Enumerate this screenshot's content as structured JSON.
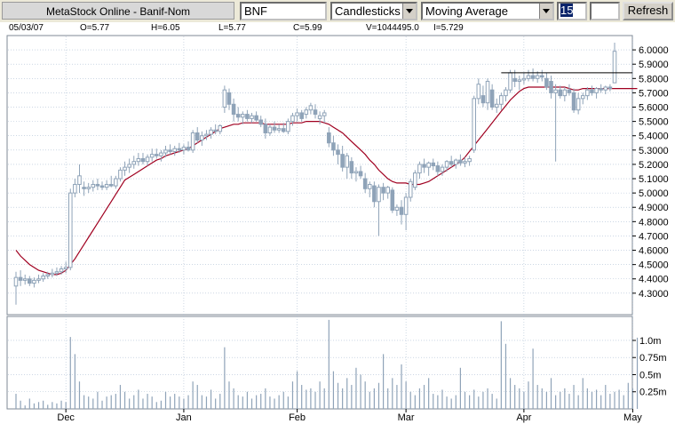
{
  "toolbar": {
    "title": "MetaStock Online - Banif-Nom",
    "symbol": "BNF",
    "chart_type": "Candlesticks",
    "indicator": "Moving Average",
    "period": "15",
    "refresh_label": "Refresh"
  },
  "info": {
    "date": "05/03/07",
    "open": "O=5.77",
    "high": "H=6.05",
    "low": "L=5.77",
    "close": "C=5.99",
    "volume": "V=1044495.0",
    "indicator_value": "I=5.729"
  },
  "colors": {
    "candle": "#8fa3b8",
    "moving_average": "#a00020",
    "grid": "#aebfd3",
    "toolbar": "#ece9d8"
  },
  "chart_data": {
    "type": "candlestick",
    "price_axis": {
      "min": 4.15,
      "max": 6.1,
      "ticks": [
        4.3,
        4.4,
        4.5,
        4.6,
        4.7,
        4.8,
        4.9,
        5.0,
        5.1,
        5.2,
        5.3,
        5.4,
        5.5,
        5.6,
        5.7,
        5.8,
        5.9,
        6.0
      ],
      "tick_labels": [
        "4.3000",
        "4.4000",
        "4.5000",
        "4.6000",
        "4.7000",
        "4.8000",
        "4.9000",
        "5.0000",
        "5.1000",
        "5.2000",
        "5.3000",
        "5.4000",
        "5.5000",
        "5.6000",
        "5.7000",
        "5.8000",
        "5.9000",
        "6.0000"
      ]
    },
    "volume_axis": {
      "max": 1.35,
      "ticks": [
        0.25,
        0.5,
        0.75,
        1.0
      ],
      "tick_labels": [
        "0.25m",
        "0.5m",
        "0.75m",
        "1.0m"
      ]
    },
    "x_labels": [
      {
        "index": 11,
        "label": "Dec"
      },
      {
        "index": 37,
        "label": "Jan"
      },
      {
        "index": 62,
        "label": "Feb"
      },
      {
        "index": 86,
        "label": "Mar"
      },
      {
        "index": 112,
        "label": "Apr"
      },
      {
        "index": 136,
        "label": "May"
      }
    ],
    "horizontal_line": {
      "value": 5.84,
      "from_index": 107,
      "to_index": 139
    },
    "candles": [
      [
        4.35,
        4.45,
        4.22,
        4.41
      ],
      [
        4.41,
        4.46,
        4.35,
        4.39
      ],
      [
        4.39,
        4.43,
        4.36,
        4.4
      ],
      [
        4.4,
        4.42,
        4.35,
        4.37
      ],
      [
        4.37,
        4.41,
        4.34,
        4.39
      ],
      [
        4.39,
        4.43,
        4.37,
        4.4
      ],
      [
        4.4,
        4.44,
        4.38,
        4.42
      ],
      [
        4.42,
        4.45,
        4.4,
        4.43
      ],
      [
        4.43,
        4.47,
        4.41,
        4.44
      ],
      [
        4.44,
        4.48,
        4.42,
        4.45
      ],
      [
        4.45,
        4.49,
        4.43,
        4.47
      ],
      [
        4.47,
        4.52,
        4.44,
        4.48
      ],
      [
        4.48,
        5.03,
        4.46,
        5.0
      ],
      [
        5.0,
        5.1,
        4.97,
        5.06
      ],
      [
        5.06,
        5.2,
        5.0,
        5.12
      ],
      [
        5.04,
        5.08,
        4.98,
        5.03
      ],
      [
        5.03,
        5.07,
        5.0,
        5.04
      ],
      [
        5.04,
        5.09,
        5.01,
        5.06
      ],
      [
        5.06,
        5.1,
        5.02,
        5.05
      ],
      [
        5.05,
        5.08,
        5.02,
        5.04
      ],
      [
        5.04,
        5.09,
        5.02,
        5.06
      ],
      [
        5.06,
        5.12,
        5.04,
        5.05
      ],
      [
        5.05,
        5.12,
        5.03,
        5.1
      ],
      [
        5.1,
        5.18,
        5.08,
        5.16
      ],
      [
        5.16,
        5.22,
        5.12,
        5.18
      ],
      [
        5.18,
        5.24,
        5.14,
        5.2
      ],
      [
        5.2,
        5.26,
        5.17,
        5.22
      ],
      [
        5.22,
        5.28,
        5.19,
        5.24
      ],
      [
        5.24,
        5.28,
        5.2,
        5.22
      ],
      [
        5.22,
        5.27,
        5.19,
        5.25
      ],
      [
        5.25,
        5.31,
        5.22,
        5.27
      ],
      [
        5.27,
        5.31,
        5.24,
        5.26
      ],
      [
        5.26,
        5.3,
        5.22,
        5.28
      ],
      [
        5.28,
        5.33,
        5.25,
        5.3
      ],
      [
        5.3,
        5.34,
        5.27,
        5.29
      ],
      [
        5.29,
        5.33,
        5.26,
        5.31
      ],
      [
        5.31,
        5.35,
        5.28,
        5.3
      ],
      [
        5.3,
        5.34,
        5.27,
        5.32
      ],
      [
        5.32,
        5.36,
        5.29,
        5.3
      ],
      [
        5.3,
        5.44,
        5.28,
        5.42
      ],
      [
        5.42,
        5.46,
        5.35,
        5.37
      ],
      [
        5.37,
        5.43,
        5.33,
        5.4
      ],
      [
        5.4,
        5.44,
        5.37,
        5.41
      ],
      [
        5.41,
        5.46,
        5.38,
        5.44
      ],
      [
        5.44,
        5.48,
        5.41,
        5.43
      ],
      [
        5.43,
        5.48,
        5.41,
        5.47
      ],
      [
        5.6,
        5.75,
        5.56,
        5.72
      ],
      [
        5.7,
        5.73,
        5.58,
        5.62
      ],
      [
        5.62,
        5.66,
        5.5,
        5.55
      ],
      [
        5.55,
        5.6,
        5.5,
        5.53
      ],
      [
        5.53,
        5.57,
        5.48,
        5.55
      ],
      [
        5.55,
        5.58,
        5.5,
        5.52
      ],
      [
        5.52,
        5.56,
        5.49,
        5.54
      ],
      [
        5.54,
        5.57,
        5.5,
        5.51
      ],
      [
        5.51,
        5.54,
        5.46,
        5.48
      ],
      [
        5.48,
        5.52,
        5.38,
        5.42
      ],
      [
        5.42,
        5.48,
        5.4,
        5.46
      ],
      [
        5.46,
        5.5,
        5.42,
        5.44
      ],
      [
        5.44,
        5.48,
        5.42,
        5.45
      ],
      [
        5.45,
        5.49,
        5.42,
        5.43
      ],
      [
        5.43,
        5.52,
        5.41,
        5.5
      ],
      [
        5.5,
        5.56,
        5.47,
        5.54
      ],
      [
        5.54,
        5.59,
        5.5,
        5.56
      ],
      [
        5.56,
        5.58,
        5.5,
        5.52
      ],
      [
        5.55,
        5.6,
        5.52,
        5.58
      ],
      [
        5.58,
        5.63,
        5.55,
        5.61
      ],
      [
        5.58,
        5.62,
        5.52,
        5.55
      ],
      [
        5.52,
        5.57,
        5.48,
        5.54
      ],
      [
        5.54,
        5.58,
        5.49,
        5.56
      ],
      [
        5.42,
        5.46,
        5.32,
        5.35
      ],
      [
        5.35,
        5.4,
        5.26,
        5.3
      ],
      [
        5.3,
        5.34,
        5.2,
        5.27
      ],
      [
        5.27,
        5.33,
        5.15,
        5.18
      ],
      [
        5.18,
        5.28,
        5.1,
        5.26
      ],
      [
        5.22,
        5.25,
        5.1,
        5.14
      ],
      [
        5.14,
        5.18,
        5.08,
        5.15
      ],
      [
        5.15,
        5.19,
        5.1,
        5.12
      ],
      [
        5.1,
        5.14,
        5.0,
        5.03
      ],
      [
        5.03,
        5.08,
        4.97,
        5.06
      ],
      [
        5.05,
        5.08,
        4.9,
        4.94
      ],
      [
        4.94,
        5.06,
        4.7,
        5.04
      ],
      [
        5.04,
        5.07,
        4.95,
        5.0
      ],
      [
        5.0,
        5.05,
        4.96,
        5.04
      ],
      [
        5.02,
        5.04,
        4.86,
        4.88
      ],
      [
        4.88,
        4.92,
        4.84,
        4.9
      ],
      [
        4.9,
        4.95,
        4.78,
        4.85
      ],
      [
        4.85,
        5.0,
        4.74,
        4.97
      ],
      [
        4.97,
        5.1,
        4.94,
        5.08
      ],
      [
        5.04,
        5.16,
        5.02,
        5.14
      ],
      [
        5.14,
        5.22,
        5.1,
        5.2
      ],
      [
        5.2,
        5.24,
        5.14,
        5.18
      ],
      [
        5.18,
        5.22,
        5.12,
        5.21
      ],
      [
        5.21,
        5.24,
        5.16,
        5.19
      ],
      [
        5.19,
        5.22,
        5.12,
        5.15
      ],
      [
        5.15,
        5.2,
        5.12,
        5.18
      ],
      [
        5.18,
        5.23,
        5.15,
        5.22
      ],
      [
        5.22,
        5.26,
        5.18,
        5.2
      ],
      [
        5.2,
        5.24,
        5.17,
        5.23
      ],
      [
        5.23,
        5.27,
        5.19,
        5.21
      ],
      [
        5.21,
        5.25,
        5.18,
        5.22
      ],
      [
        5.22,
        5.26,
        5.19,
        5.24
      ],
      [
        5.3,
        5.68,
        5.28,
        5.66
      ],
      [
        5.66,
        5.8,
        5.62,
        5.76
      ],
      [
        5.68,
        5.75,
        5.6,
        5.63
      ],
      [
        5.63,
        5.8,
        5.58,
        5.78
      ],
      [
        5.72,
        5.76,
        5.58,
        5.6
      ],
      [
        5.6,
        5.66,
        5.56,
        5.62
      ],
      [
        5.62,
        5.7,
        5.58,
        5.68
      ],
      [
        5.68,
        5.74,
        5.64,
        5.72
      ],
      [
        5.72,
        5.86,
        5.7,
        5.84
      ],
      [
        5.8,
        5.86,
        5.74,
        5.78
      ],
      [
        5.78,
        5.82,
        5.72,
        5.79
      ],
      [
        5.79,
        5.84,
        5.76,
        5.8
      ],
      [
        5.8,
        5.86,
        5.78,
        5.82
      ],
      [
        5.82,
        5.87,
        5.78,
        5.8
      ],
      [
        5.8,
        5.85,
        5.77,
        5.82
      ],
      [
        5.82,
        5.86,
        5.78,
        5.81
      ],
      [
        5.8,
        5.84,
        5.72,
        5.74
      ],
      [
        5.78,
        5.82,
        5.66,
        5.7
      ],
      [
        5.7,
        5.76,
        5.22,
        5.72
      ],
      [
        5.72,
        5.75,
        5.66,
        5.68
      ],
      [
        5.68,
        5.74,
        5.64,
        5.72
      ],
      [
        5.72,
        5.76,
        5.68,
        5.7
      ],
      [
        5.7,
        5.73,
        5.56,
        5.58
      ],
      [
        5.58,
        5.7,
        5.55,
        5.66
      ],
      [
        5.66,
        5.7,
        5.62,
        5.68
      ],
      [
        5.68,
        5.74,
        5.65,
        5.72
      ],
      [
        5.72,
        5.75,
        5.68,
        5.7
      ],
      [
        5.7,
        5.74,
        5.66,
        5.73
      ],
      [
        5.73,
        5.76,
        5.7,
        5.72
      ],
      [
        5.72,
        5.75,
        5.69,
        5.74
      ],
      [
        5.74,
        5.76,
        5.71,
        5.73
      ],
      [
        5.77,
        6.05,
        5.77,
        5.99
      ]
    ],
    "volume": [
      0.22,
      0.12,
      0.05,
      0.15,
      0.08,
      0.1,
      0.12,
      0.06,
      0.1,
      0.08,
      0.12,
      0.1,
      1.05,
      0.8,
      0.4,
      0.2,
      0.18,
      0.15,
      0.25,
      0.12,
      0.18,
      0.2,
      0.22,
      0.35,
      0.25,
      0.15,
      0.2,
      0.28,
      0.15,
      0.22,
      0.18,
      0.1,
      0.12,
      0.25,
      0.18,
      0.22,
      0.18,
      0.15,
      0.2,
      0.4,
      0.35,
      0.2,
      0.18,
      0.28,
      0.15,
      0.22,
      0.9,
      0.4,
      0.3,
      0.2,
      0.18,
      0.25,
      0.15,
      0.2,
      0.22,
      0.3,
      0.18,
      0.15,
      0.2,
      0.25,
      0.18,
      0.4,
      0.55,
      0.35,
      0.28,
      0.3,
      0.25,
      0.4,
      0.3,
      1.3,
      0.55,
      0.38,
      0.3,
      0.45,
      0.35,
      0.6,
      0.5,
      0.4,
      0.25,
      0.3,
      0.38,
      0.8,
      0.3,
      0.45,
      0.35,
      0.65,
      0.4,
      0.25,
      0.2,
      0.3,
      0.35,
      0.45,
      0.22,
      0.2,
      0.28,
      0.18,
      0.15,
      0.2,
      0.6,
      0.25,
      0.2,
      0.28,
      0.18,
      0.25,
      0.3,
      0.22,
      0.15,
      1.28,
      0.95,
      0.45,
      0.35,
      0.3,
      0.25,
      0.4,
      0.88,
      0.35,
      0.3,
      0.25,
      0.45,
      0.2,
      0.25,
      0.3,
      0.22,
      0.35,
      0.2,
      0.45,
      0.3,
      0.25,
      0.28,
      0.2,
      0.35,
      0.22,
      0.25,
      0.28,
      0.2,
      0.38,
      0.3,
      1.04
    ],
    "moving_average": [
      4.6,
      4.56,
      4.53,
      4.5,
      4.48,
      4.46,
      4.45,
      4.44,
      4.43,
      4.43,
      4.44,
      4.46,
      4.5,
      4.54,
      4.59,
      4.64,
      4.69,
      4.74,
      4.79,
      4.84,
      4.89,
      4.94,
      4.99,
      5.04,
      5.09,
      5.11,
      5.13,
      5.15,
      5.17,
      5.19,
      5.21,
      5.23,
      5.24,
      5.26,
      5.27,
      5.28,
      5.29,
      5.3,
      5.31,
      5.33,
      5.35,
      5.37,
      5.39,
      5.41,
      5.43,
      5.45,
      5.46,
      5.47,
      5.48,
      5.48,
      5.49,
      5.49,
      5.49,
      5.49,
      5.49,
      5.48,
      5.48,
      5.48,
      5.48,
      5.48,
      5.48,
      5.49,
      5.49,
      5.49,
      5.5,
      5.5,
      5.5,
      5.5,
      5.49,
      5.48,
      5.46,
      5.44,
      5.42,
      5.39,
      5.36,
      5.33,
      5.3,
      5.27,
      5.23,
      5.2,
      5.16,
      5.13,
      5.1,
      5.08,
      5.07,
      5.07,
      5.07,
      5.06,
      5.06,
      5.06,
      5.07,
      5.08,
      5.1,
      5.12,
      5.14,
      5.16,
      5.18,
      5.2,
      5.22,
      5.25,
      5.29,
      5.33,
      5.37,
      5.41,
      5.45,
      5.49,
      5.53,
      5.57,
      5.61,
      5.65,
      5.68,
      5.71,
      5.73,
      5.74,
      5.74,
      5.74,
      5.74,
      5.74,
      5.74,
      5.74,
      5.74,
      5.74,
      5.73,
      5.72,
      5.72,
      5.73,
      5.73,
      5.73,
      5.73,
      5.73,
      5.73,
      5.73,
      5.73,
      5.73,
      5.73,
      5.73,
      5.73,
      5.73
    ]
  }
}
